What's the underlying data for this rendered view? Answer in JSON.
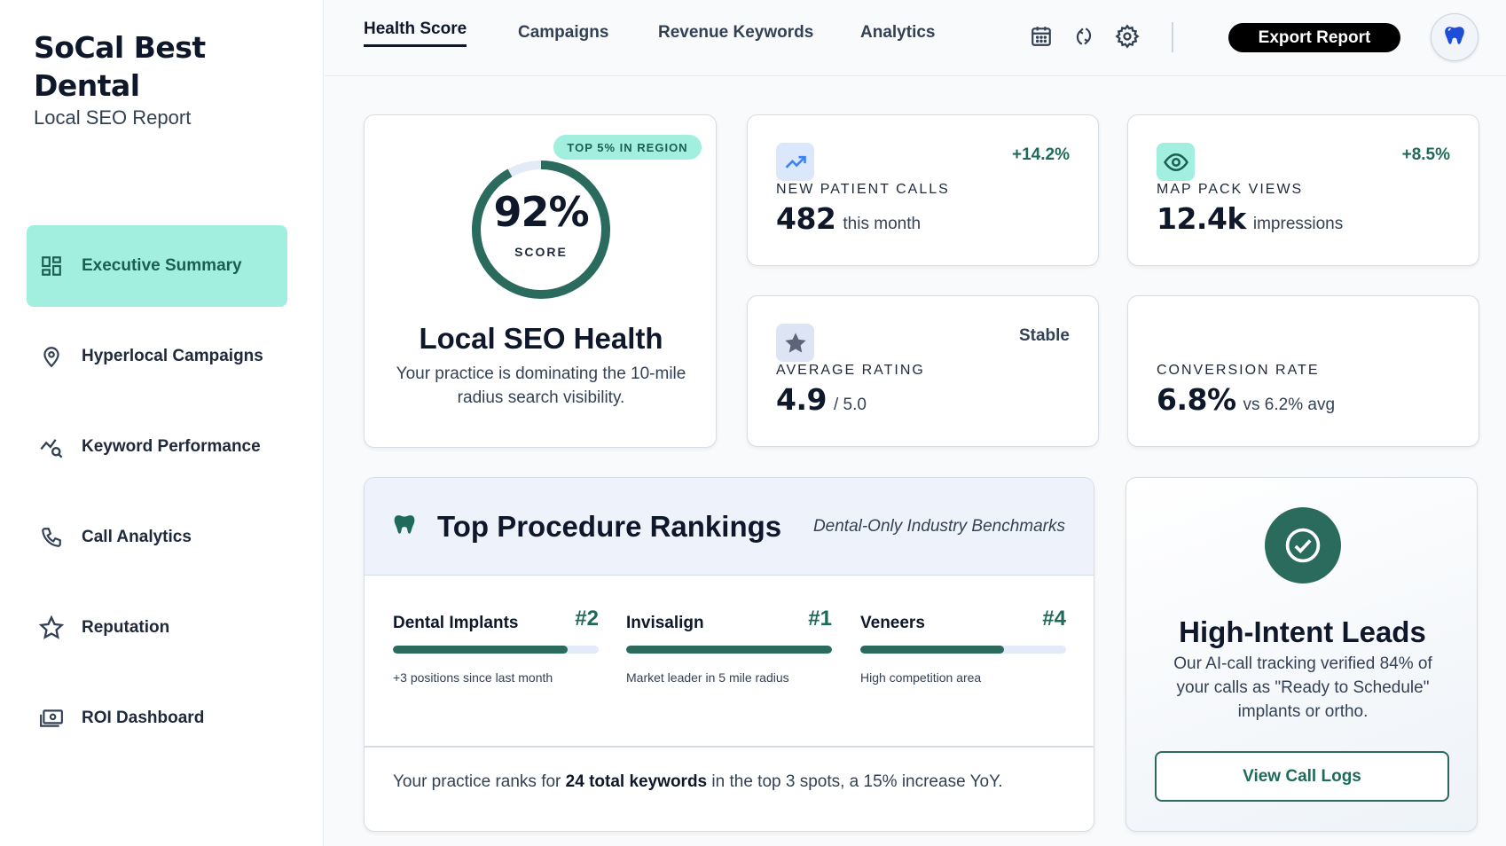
{
  "brand": {
    "name": "SoCal Best Dental",
    "subtitle": "Local SEO Report"
  },
  "sidebar": {
    "items": [
      {
        "label": "Executive Summary",
        "icon": "dashboard-icon",
        "active": true
      },
      {
        "label": "Hyperlocal Campaigns",
        "icon": "map-pin-icon"
      },
      {
        "label": "Keyword Performance",
        "icon": "chart-search-icon"
      },
      {
        "label": "Call Analytics",
        "icon": "phone-icon"
      },
      {
        "label": "Reputation",
        "icon": "star-icon"
      },
      {
        "label": "ROI Dashboard",
        "icon": "money-icon"
      }
    ]
  },
  "topbar": {
    "tabs": [
      {
        "label": "Health Score",
        "active": true
      },
      {
        "label": "Campaigns"
      },
      {
        "label": "Revenue Keywords"
      },
      {
        "label": "Analytics"
      }
    ],
    "icons": [
      "calendar-icon",
      "refresh-icon",
      "gear-icon"
    ],
    "export_label": "Export Report",
    "avatar_icon": "tooth-icon"
  },
  "health": {
    "badge": "TOP 5% IN REGION",
    "score": "92%",
    "score_fraction": 0.92,
    "score_label": "SCORE",
    "title": "Local SEO Health",
    "description": "Your practice is dominating the 10-mile radius search visibility."
  },
  "metrics": {
    "calls": {
      "icon": "trending-up-icon",
      "change": "+14.2%",
      "label": "NEW PATIENT CALLS",
      "value": "482",
      "unit": "this month"
    },
    "views": {
      "icon": "eye-icon",
      "change": "+8.5%",
      "label": "MAP PACK VIEWS",
      "value": "12.4k",
      "unit": "impressions"
    },
    "rating": {
      "icon": "star-icon",
      "change": "Stable",
      "label": "AVERAGE RATING",
      "value": "4.9",
      "unit": "/ 5.0"
    },
    "conversion": {
      "label": "CONVERSION RATE",
      "value": "6.8%",
      "unit": "vs 6.2% avg"
    }
  },
  "rankings": {
    "icon": "tooth-icon",
    "title": "Top Procedure Rankings",
    "benchmark": "Dental-Only Industry Benchmarks",
    "procedures": [
      {
        "name": "Dental Implants",
        "rank": "#2",
        "fill": 0.85,
        "note": "+3 positions since last month"
      },
      {
        "name": "Invisalign",
        "rank": "#1",
        "fill": 1.0,
        "note": "Market leader in 5 mile radius"
      },
      {
        "name": "Veneers",
        "rank": "#4",
        "fill": 0.7,
        "note": "High competition area"
      }
    ],
    "footer_pre": "Your practice ranks for ",
    "footer_bold": "24 total keywords",
    "footer_post": " in the top 3 spots, a 15% increase YoY."
  },
  "leads": {
    "icon": "check-circle-icon",
    "title": "High-Intent Leads",
    "description": "Our AI-call tracking verified 84% of your calls as \"Ready to Schedule\" implants or ortho.",
    "button": "View Call Logs"
  },
  "colors": {
    "accent": "#2a6b5e",
    "accent_light": "#a3efdf",
    "text_dark": "#0f172a",
    "panel_head": "#eef3fb"
  }
}
